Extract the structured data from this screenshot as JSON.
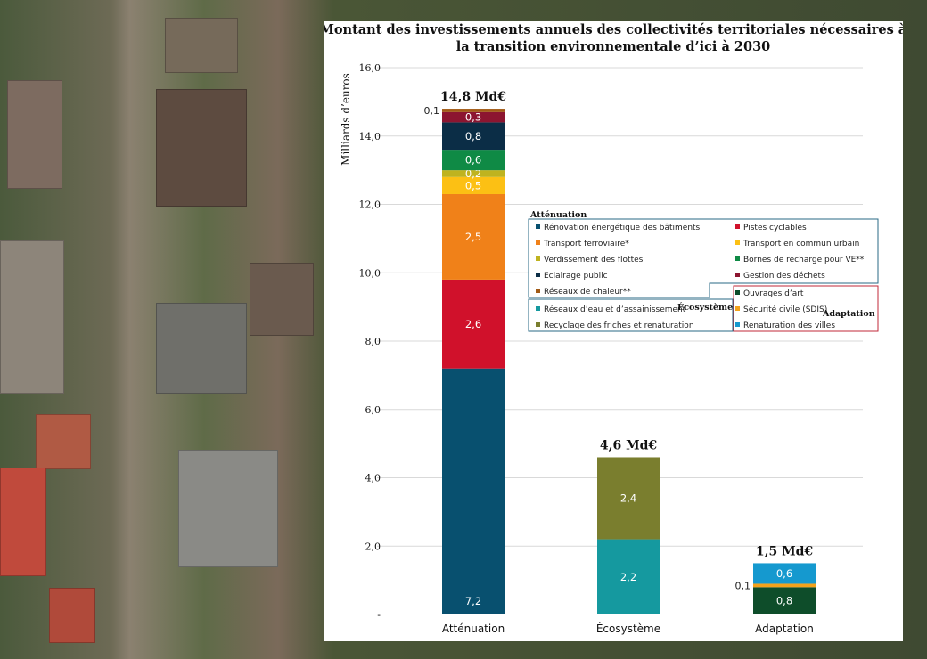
{
  "chart_data": {
    "type": "bar",
    "stacked": true,
    "title": "Montant des investissements annuels des collectivités territoriales nécessaires à la transition environnementale d’ici à 2030",
    "title_lines": [
      "Montant des investissements annuels des collectivités territoriales nécessaires à",
      "la transition environnementale d’ici à 2030"
    ],
    "ylabel": "Milliards d’euros",
    "ylim": [
      0,
      16
    ],
    "yticks": [
      "-",
      "2,0",
      "4,0",
      "6,0",
      "8,0",
      "10,0",
      "12,0",
      "14,0",
      "16,0"
    ],
    "grid": true,
    "legend_placement": "inside-right",
    "categories": [
      "Atténuation",
      "Écosystème",
      "Adaptation"
    ],
    "totals": [
      "14,8 Md€",
      "4,6 Md€",
      "1,5 Md€"
    ],
    "stacks": [
      [
        {
          "name": "Rénovation énergétique des bâtiments",
          "value": 7.2,
          "label": "7,2",
          "color": "#08506f"
        },
        {
          "name": "Pistes cyclables",
          "value": 2.6,
          "label": "2,6",
          "color": "#d0112b"
        },
        {
          "name": "Transport ferroviaire*",
          "value": 2.5,
          "label": "2,5",
          "color": "#f08119"
        },
        {
          "name": "Transport en commun urbain",
          "value": 0.5,
          "label": "0,5",
          "color": "#fcc014"
        },
        {
          "name": "Verdissement des flottes",
          "value": 0.2,
          "label": "0,2",
          "color": "#bfb31f"
        },
        {
          "name": "Bornes de recharge pour VE**",
          "value": 0.6,
          "label": "0,6",
          "color": "#0f8a45"
        },
        {
          "name": "Eclairage public",
          "value": 0.8,
          "label": "0,8",
          "color": "#0b2d46"
        },
        {
          "name": "Gestion des déchets",
          "value": 0.3,
          "label": "0,3",
          "color": "#8c1530"
        },
        {
          "name": "Réseaux de chaleur**",
          "value": 0.1,
          "label": "0,1",
          "color": "#a15a16"
        }
      ],
      [
        {
          "name": "Réseaux d’eau et d’assainissement",
          "value": 2.2,
          "label": "2,2",
          "color": "#15999f"
        },
        {
          "name": "Recyclage des friches et renaturation",
          "value": 2.4,
          "label": "2,4",
          "color": "#7a7e2e"
        }
      ],
      [
        {
          "name": "Ouvrages d’art",
          "value": 0.8,
          "label": "0,8",
          "color": "#0e4d2a"
        },
        {
          "name": "Sécurité civile (SDIS)",
          "value": 0.1,
          "label": "0,1",
          "color": "#f3a21b"
        },
        {
          "name": "Renaturation des villes",
          "value": 0.6,
          "label": "0,6",
          "color": "#1599cf"
        }
      ]
    ],
    "legend": {
      "groups": [
        {
          "title": "Atténuation",
          "items": [
            "Rénovation énergétique des bâtiments",
            "Pistes cyclables",
            "Transport ferroviaire*",
            "Transport en commun urbain",
            "Verdissement des flottes",
            "Bornes de recharge pour VE**",
            "Eclairage public",
            "Gestion des déchets",
            "Réseaux de chaleur**"
          ],
          "border": "#2a6a86"
        },
        {
          "title": "Écosystème",
          "items": [
            "Réseaux d’eau et d’assainissement",
            "Recyclage des friches et renaturation"
          ],
          "border": "#2a6a86"
        },
        {
          "title": "Adaptation",
          "items": [
            "Ouvrages d’art",
            "Sécurité civile (SDIS)",
            "Renaturation des villes"
          ],
          "border": "#c0283a"
        }
      ]
    }
  }
}
